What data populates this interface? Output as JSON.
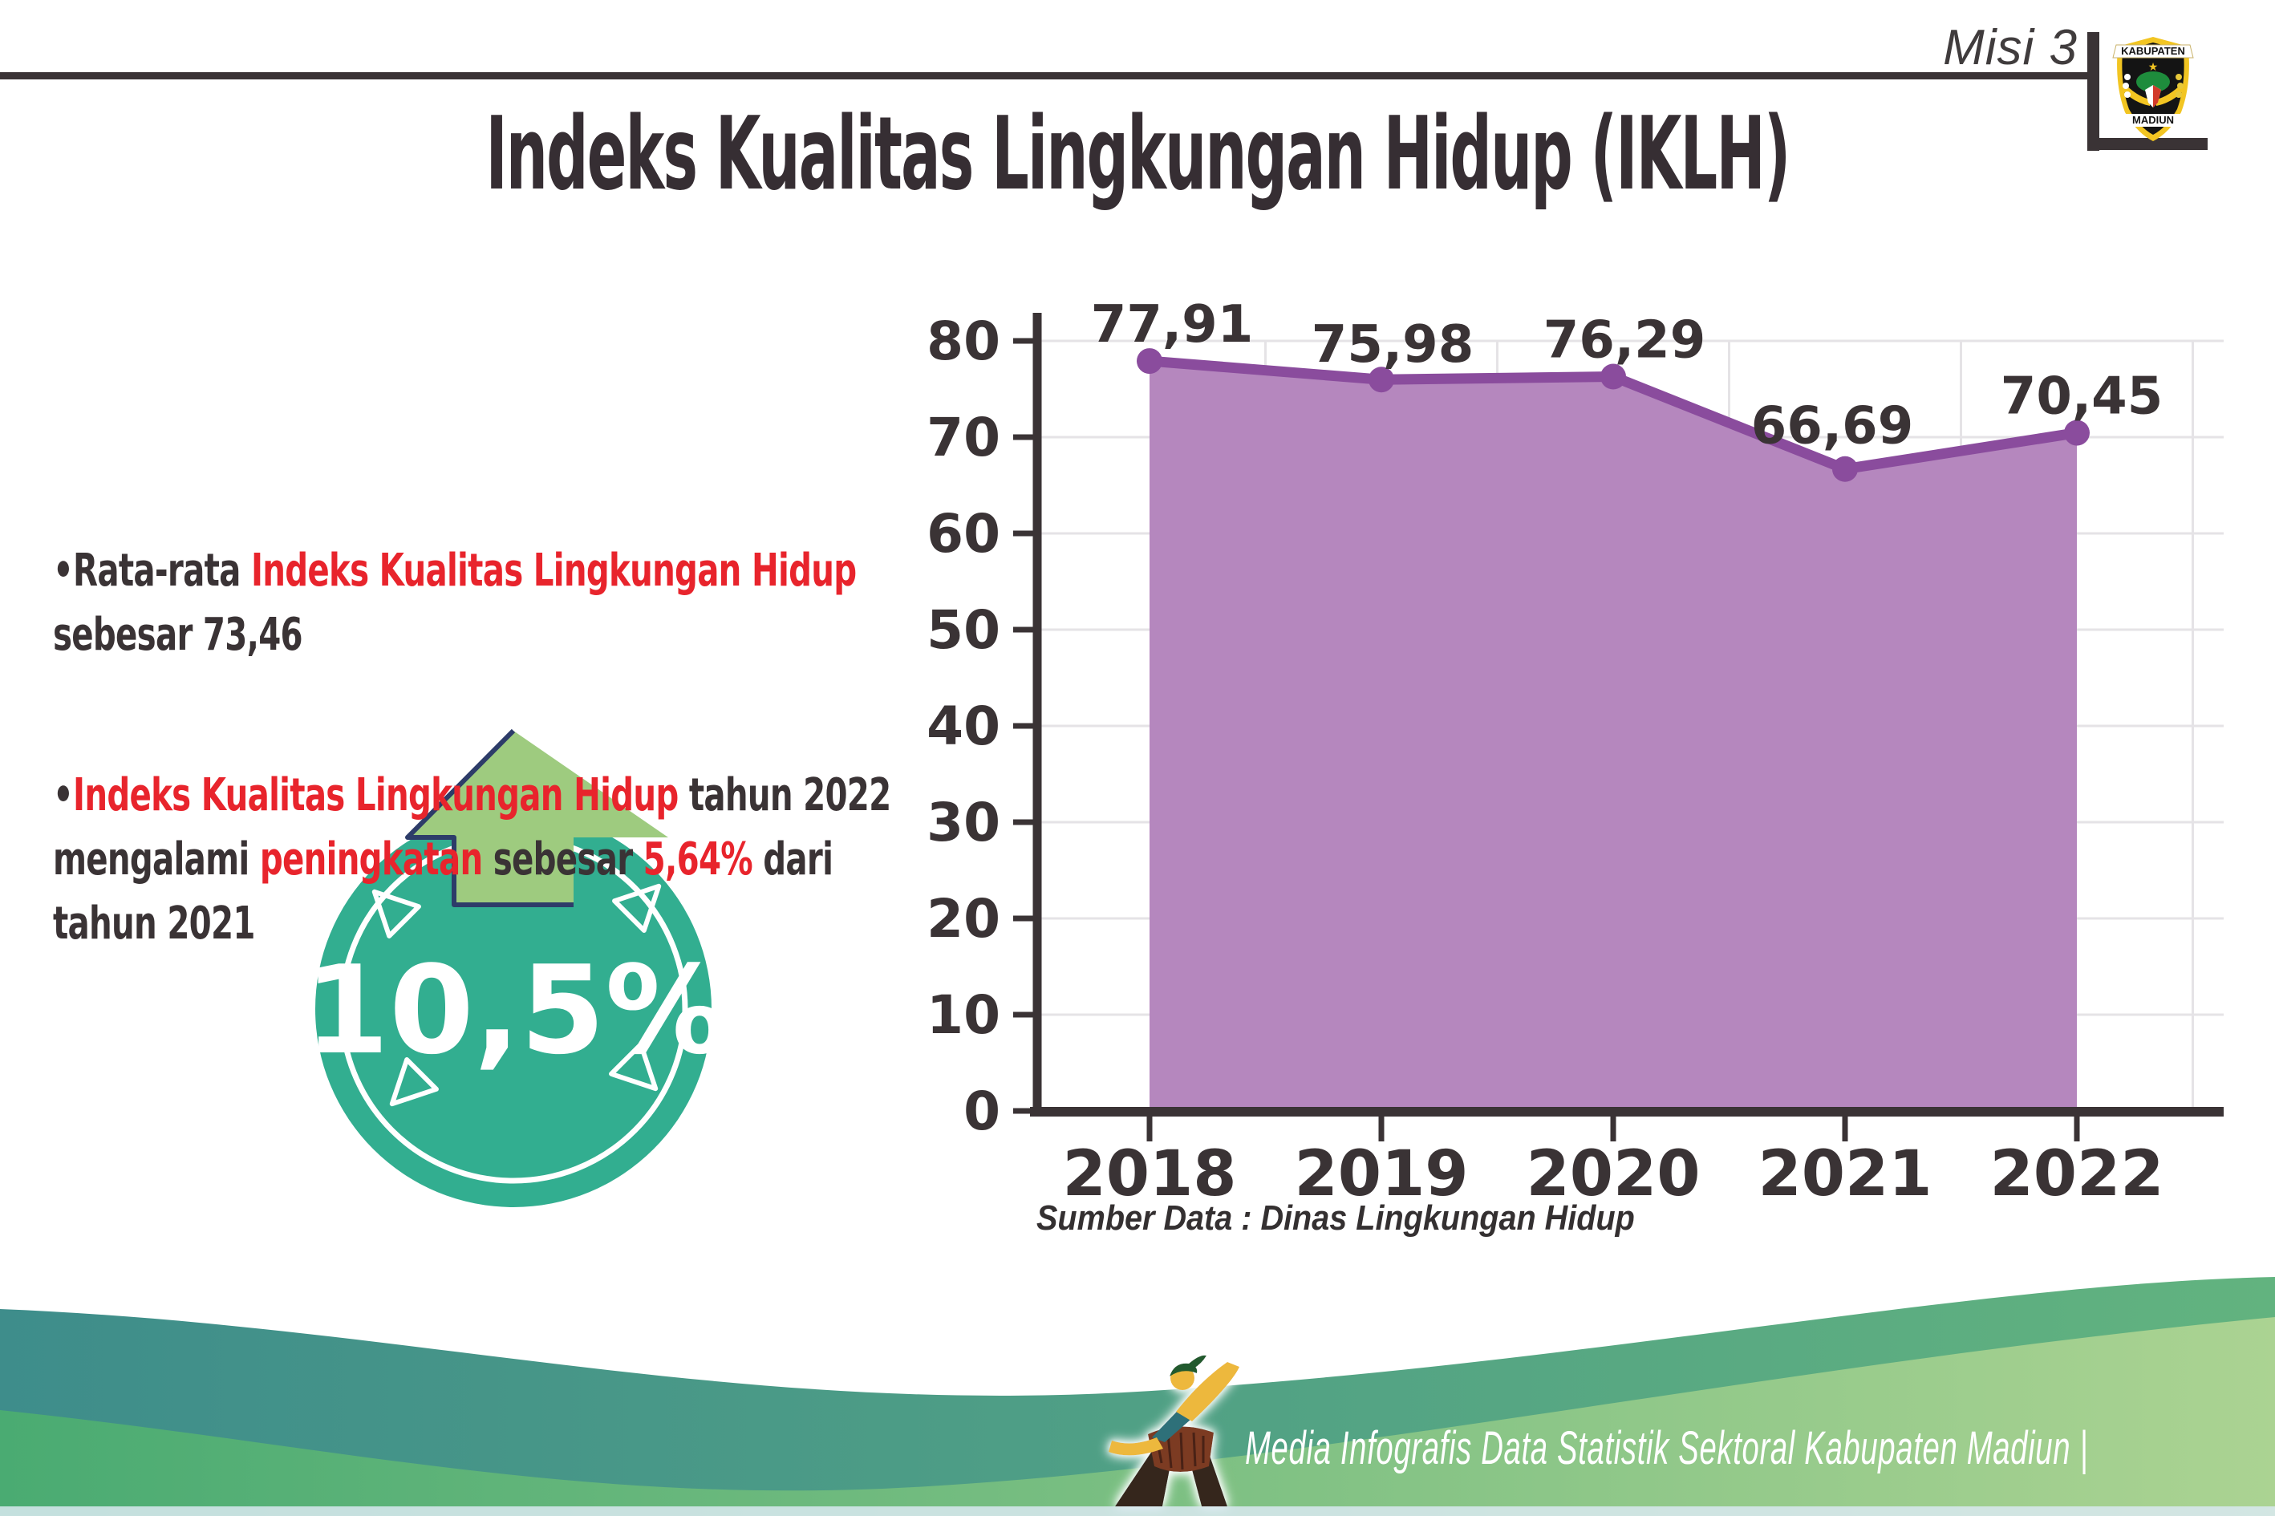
{
  "header": {
    "misi_label": "Misi 3",
    "logo": {
      "top": "KABUPATEN",
      "bottom": "MADIUN"
    }
  },
  "title": "Indeks Kualitas Lingkungan Hidup (IKLH)",
  "bullets": {
    "b1": {
      "s1": "•Rata-rata ",
      "s2": "Indeks Kualitas Lingkungan Hidup\n",
      "s3": "sebesar 73,46"
    },
    "b2": {
      "s1": "•",
      "s2": "Indeks Kualitas Lingkungan Hidup",
      "s3": " tahun 2022\nmengalami ",
      "s4": "peningkatan",
      "s5": " sebesar ",
      "s6": "5,64%",
      "s7": " dari\ntahun 2021"
    }
  },
  "badge": {
    "value": "10,5%"
  },
  "chart_data": {
    "type": "area",
    "categories": [
      "2018",
      "2019",
      "2020",
      "2021",
      "2022"
    ],
    "values": [
      77.91,
      75.98,
      76.29,
      66.69,
      70.45
    ],
    "value_labels": [
      "77,91",
      "75,98",
      "76,29",
      "66,69",
      "70,45"
    ],
    "ylim": [
      0,
      80
    ],
    "ytick_step": 10,
    "yticks": [
      0,
      10,
      20,
      30,
      40,
      50,
      60,
      70,
      80
    ],
    "grid": true,
    "legend": "none",
    "line_color": "#8a4c9d",
    "fill_color": "#b587be",
    "axis_color": "#3a3335",
    "grid_color": "#e5e3e6",
    "source_note": "Sumber Data : Dinas Lingkungan Hidup"
  },
  "footer": {
    "caption": "Media Infografis Data Statistik Sektoral Kabupaten Madiun |"
  },
  "colors": {
    "accent_red": "#e8242c",
    "dark_text": "#3a3335",
    "badge_teal": "#32ae90",
    "arrow_green": "#9ecb7f",
    "arrow_outline_navy": "#2d3c69",
    "footer_teal": "#3e8d8b",
    "footer_green": "#4aab72"
  }
}
